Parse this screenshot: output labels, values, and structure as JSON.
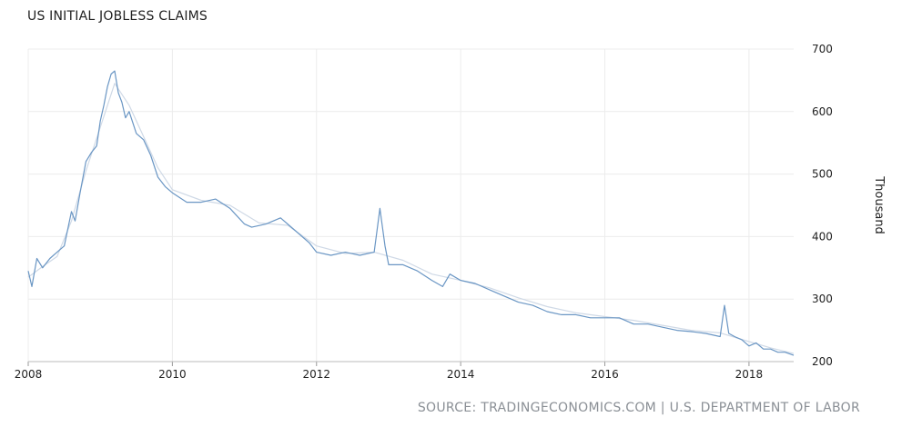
{
  "chart_data": {
    "type": "line",
    "title": "US INITIAL JOBLESS CLAIMS",
    "ylabel": "Thousand",
    "xlabel": "",
    "source": "SOURCE: TRADINGECONOMICS.COM | U.S. DEPARTMENT OF LABOR",
    "ylim": [
      200,
      700
    ],
    "xlim": [
      2008,
      2018.62
    ],
    "yticks": [
      "200",
      "300",
      "400",
      "500",
      "600",
      "700"
    ],
    "xticks": [
      "2008",
      "2010",
      "2012",
      "2014",
      "2016",
      "2018"
    ],
    "grid": true,
    "legend": "none",
    "series": [
      {
        "color": "#6a96c4",
        "x": [
          2008.0,
          2008.05,
          2008.12,
          2008.2,
          2008.3,
          2008.4,
          2008.5,
          2008.6,
          2008.65,
          2008.72,
          2008.8,
          2008.88,
          2008.95,
          2009.0,
          2009.05,
          2009.1,
          2009.15,
          2009.2,
          2009.25,
          2009.3,
          2009.35,
          2009.4,
          2009.5,
          2009.6,
          2009.7,
          2009.8,
          2009.9,
          2010.0,
          2010.2,
          2010.4,
          2010.6,
          2010.8,
          2011.0,
          2011.1,
          2011.3,
          2011.5,
          2011.7,
          2011.9,
          2012.0,
          2012.2,
          2012.4,
          2012.6,
          2012.8,
          2012.88,
          2012.95,
          2013.0,
          2013.2,
          2013.4,
          2013.6,
          2013.75,
          2013.85,
          2014.0,
          2014.2,
          2014.4,
          2014.6,
          2014.8,
          2015.0,
          2015.2,
          2015.4,
          2015.6,
          2015.8,
          2016.0,
          2016.2,
          2016.4,
          2016.6,
          2016.8,
          2017.0,
          2017.2,
          2017.4,
          2017.6,
          2017.66,
          2017.72,
          2017.8,
          2017.9,
          2018.0,
          2018.1,
          2018.2,
          2018.3,
          2018.4,
          2018.5,
          2018.62
        ],
        "values": [
          345,
          320,
          365,
          350,
          365,
          375,
          385,
          440,
          425,
          470,
          520,
          535,
          545,
          585,
          610,
          640,
          660,
          665,
          630,
          615,
          590,
          600,
          565,
          555,
          530,
          495,
          480,
          470,
          455,
          455,
          460,
          445,
          420,
          415,
          420,
          430,
          410,
          390,
          375,
          370,
          375,
          370,
          375,
          445,
          385,
          355,
          355,
          345,
          330,
          320,
          340,
          330,
          325,
          315,
          305,
          295,
          290,
          280,
          275,
          275,
          270,
          270,
          270,
          260,
          260,
          255,
          250,
          248,
          245,
          240,
          290,
          245,
          240,
          235,
          225,
          230,
          220,
          220,
          215,
          215,
          210
        ]
      },
      {
        "color": "#cfd9e6",
        "x": [
          2008.0,
          2008.2,
          2008.4,
          2008.6,
          2008.8,
          2009.0,
          2009.2,
          2009.4,
          2009.6,
          2009.8,
          2010.0,
          2010.4,
          2010.8,
          2011.2,
          2011.6,
          2012.0,
          2012.4,
          2012.8,
          2013.2,
          2013.6,
          2014.0,
          2014.4,
          2014.8,
          2015.2,
          2015.6,
          2016.0,
          2016.4,
          2016.8,
          2017.2,
          2017.6,
          2018.0,
          2018.3,
          2018.62
        ],
        "values": [
          335,
          352,
          368,
          425,
          505,
          575,
          645,
          610,
          560,
          510,
          475,
          458,
          450,
          422,
          418,
          385,
          373,
          375,
          362,
          340,
          330,
          318,
          302,
          288,
          278,
          272,
          266,
          258,
          250,
          246,
          232,
          222,
          213
        ]
      }
    ]
  }
}
